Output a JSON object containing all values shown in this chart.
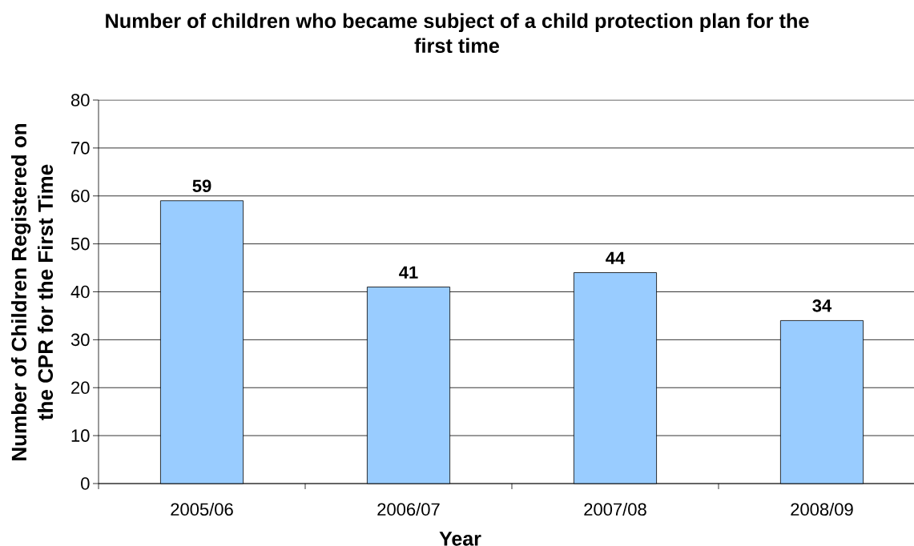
{
  "chart_data": {
    "type": "bar",
    "title": "Number of children who became subject of a child protection plan for the first time",
    "xlabel": "Year",
    "ylabel": "Number of Children Registered on the CPR for the First Time",
    "categories": [
      "2005/06",
      "2006/07",
      "2007/08",
      "2008/09"
    ],
    "values": [
      59,
      41,
      44,
      34
    ],
    "color": "#99ccff",
    "ylim": [
      0,
      80
    ],
    "yticks": [
      0,
      10,
      20,
      30,
      40,
      50,
      60,
      70,
      80
    ],
    "grid": "y",
    "data_labels": true
  }
}
